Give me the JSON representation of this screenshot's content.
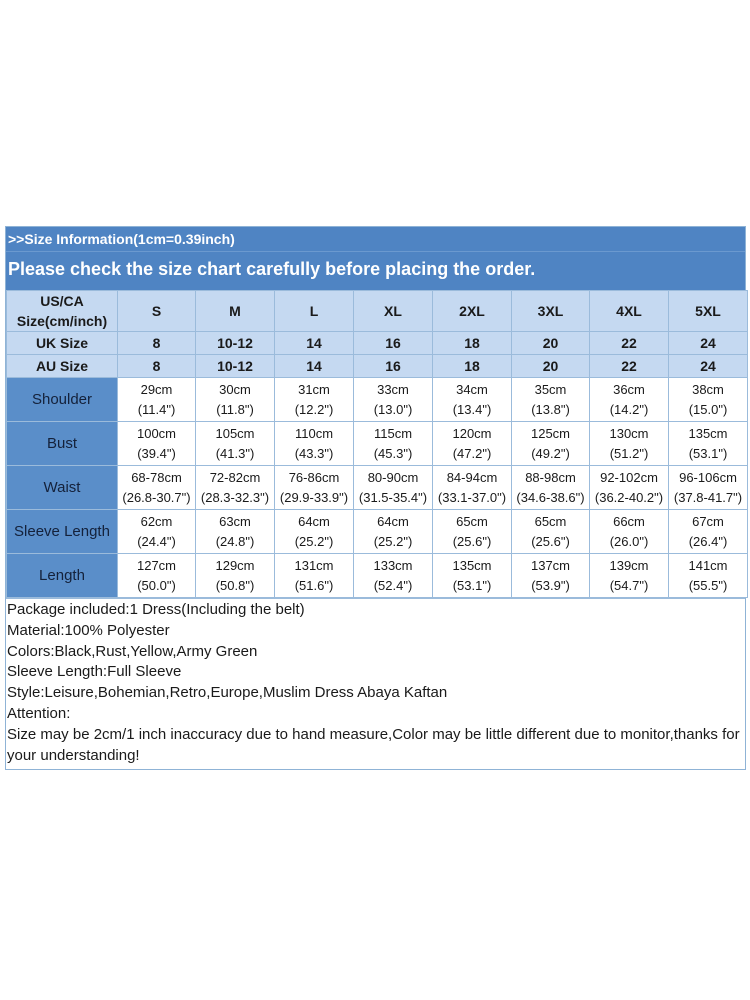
{
  "banner": {
    "info": ">>Size Information(1cm=0.39inch)",
    "check": "Please check the size chart carefully before placing the order."
  },
  "sizes": {
    "us_label": "US/CA Size(cm/inch)",
    "us_label_line1": "US/CA",
    "us_label_line2": "Size(cm/inch)",
    "names": [
      "S",
      "M",
      "L",
      "XL",
      "2XL",
      "3XL",
      "4XL",
      "5XL"
    ]
  },
  "uk": {
    "label": "UK Size",
    "values": [
      "8",
      "10-12",
      "14",
      "16",
      "18",
      "20",
      "22",
      "24"
    ]
  },
  "au": {
    "label": "AU Size",
    "values": [
      "8",
      "10-12",
      "14",
      "16",
      "18",
      "20",
      "22",
      "24"
    ]
  },
  "measurements": [
    {
      "label": "Shoulder",
      "cm": [
        "29cm",
        "30cm",
        "31cm",
        "33cm",
        "34cm",
        "35cm",
        "36cm",
        "38cm"
      ],
      "inch": [
        "(11.4\")",
        "(11.8\")",
        "(12.2\")",
        "(13.0\")",
        "(13.4\")",
        "(13.8\")",
        "(14.2\")",
        "(15.0\")"
      ]
    },
    {
      "label": "Bust",
      "cm": [
        "100cm",
        "105cm",
        "110cm",
        "115cm",
        "120cm",
        "125cm",
        "130cm",
        "135cm"
      ],
      "inch": [
        "(39.4\")",
        "(41.3\")",
        "(43.3\")",
        "(45.3\")",
        "(47.2\")",
        "(49.2\")",
        "(51.2\")",
        "(53.1\")"
      ]
    },
    {
      "label": "Waist",
      "cm": [
        "68-78cm",
        "72-82cm",
        "76-86cm",
        "80-90cm",
        "84-94cm",
        "88-98cm",
        "92-102cm",
        "96-106cm"
      ],
      "inch": [
        "(26.8-30.7\")",
        "(28.3-32.3\")",
        "(29.9-33.9\")",
        "(31.5-35.4\")",
        "(33.1-37.0\")",
        "(34.6-38.6\")",
        "(36.2-40.2\")",
        "(37.8-41.7\")"
      ]
    },
    {
      "label": "Sleeve Length",
      "cm": [
        "62cm",
        "63cm",
        "64cm",
        "64cm",
        "65cm",
        "65cm",
        "66cm",
        "67cm"
      ],
      "inch": [
        "(24.4\")",
        "(24.8\")",
        "(25.2\")",
        "(25.2\")",
        "(25.6\")",
        "(25.6\")",
        "(26.0\")",
        "(26.4\")"
      ]
    },
    {
      "label": "Length",
      "cm": [
        "127cm",
        "129cm",
        "131cm",
        "133cm",
        "135cm",
        "137cm",
        "139cm",
        "141cm"
      ],
      "inch": [
        "(50.0\")",
        "(50.8\")",
        "(51.6\")",
        "(52.4\")",
        "(53.1\")",
        "(53.9\")",
        "(54.7\")",
        "(55.5\")"
      ]
    }
  ],
  "notes": [
    "Package included:1 Dress(Including the belt)",
    "Material:100% Polyester",
    "Colors:Black,Rust,Yellow,Army Green",
    "Sleeve Length:Full Sleeve",
    "Style:Leisure,Bohemian,Retro,Europe,Muslim Dress Abaya Kaftan",
    "Attention:",
    "Size may be 2cm/1 inch inaccuracy due to hand measure,Color may be little different due to monitor,thanks for your understanding!"
  ],
  "colors": {
    "banner": "#4f84c3",
    "header_cells": "#c5d9f1",
    "row_label_cells": "#5a8ec9",
    "grid_lines": "#9bbbdb"
  }
}
